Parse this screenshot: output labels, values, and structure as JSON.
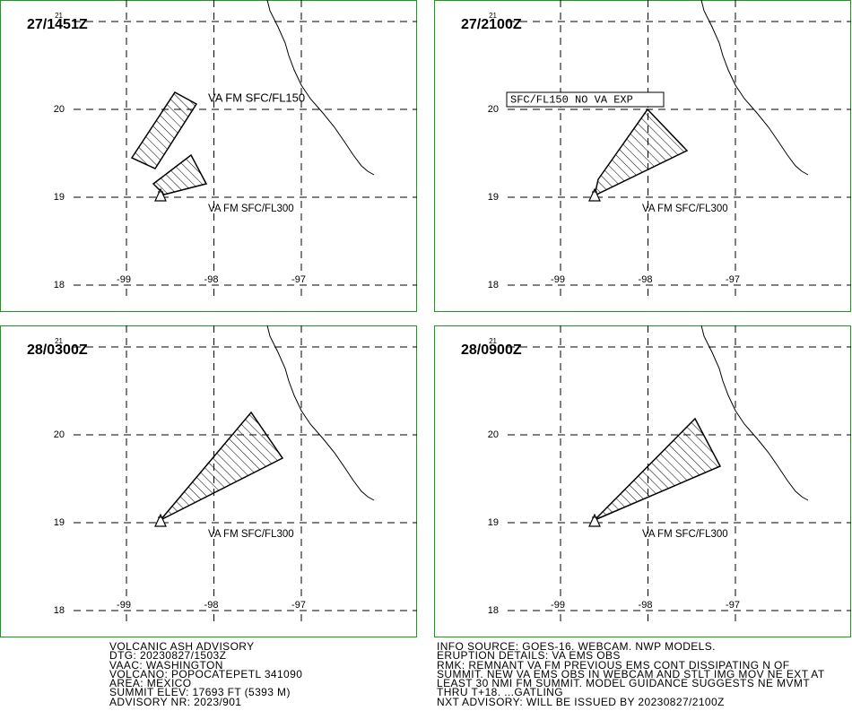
{
  "graticule": {
    "lats": [
      21,
      20,
      19,
      18
    ],
    "lons": [
      -99,
      -98,
      -97
    ]
  },
  "panels": [
    {
      "time": "27/1451Z",
      "annotations": [
        "VA FM SFC/FL150",
        "VA FM SFC/FL300"
      ]
    },
    {
      "time": "27/2100Z",
      "annotations": [
        "SFC/FL150 NO VA EXP",
        "VA FM SFC/FL300"
      ]
    },
    {
      "time": "28/0300Z",
      "annotations": [
        "VA FM SFC/FL300"
      ]
    },
    {
      "time": "28/0900Z",
      "annotations": [
        "VA FM SFC/FL300"
      ]
    }
  ],
  "advisory_left": [
    "VOLCANIC ASH ADVISORY",
    "DTG: 20230827/1503Z",
    "VAAC: WASHINGTON",
    "VOLCANO: POPOCATEPETL 341090",
    "AREA: MEXICO",
    "SUMMIT ELEV: 17693 FT (5393 M)",
    "ADVISORY NR: 2023/901"
  ],
  "advisory_right": [
    "INFO SOURCE: GOES-16. WEBCAM. NWP MODELS.",
    "ERUPTION DETAILS: VA EMS OBS",
    "RMK: REMNANT VA FM PREVIOUS EMS CONT DISSIPATING N OF",
    "SUMMIT. NEW VA EMS OBS IN WEBCAM AND STLT IMG MOV NE EXT AT",
    "LEAST 30 NMI FM SUMMIT. MODEL GUIDANCE SUGGESTS NE MVMT",
    "THRU T+18. ...GATLING",
    "NXT ADVISORY: WILL BE ISSUED BY 20230827/2100Z"
  ]
}
